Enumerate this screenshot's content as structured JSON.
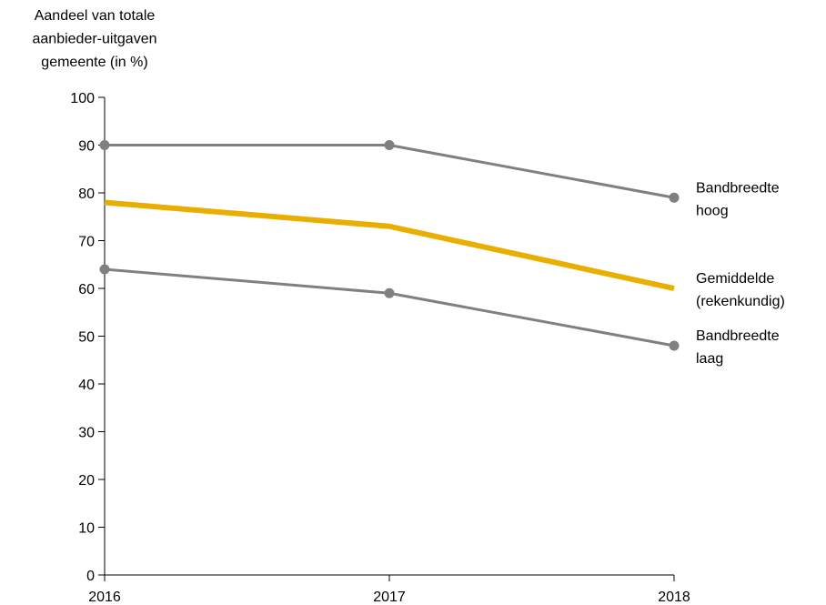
{
  "chart_data": {
    "type": "line",
    "ylabel_lines": [
      "Aandeel van totale",
      "aanbieder-uitgaven",
      "gemeente (in %)"
    ],
    "xlabel": "",
    "x": [
      "2016",
      "2017",
      "2018"
    ],
    "ylim": [
      0,
      100
    ],
    "yticks": [
      "0",
      "10",
      "20",
      "30",
      "40",
      "50",
      "60",
      "70",
      "80",
      "90",
      "100"
    ],
    "grid": false,
    "legend": "inline-right",
    "series": [
      {
        "name_lines": [
          "Bandbreedte",
          "hoog"
        ],
        "values": [
          90,
          90,
          79
        ],
        "color": "#808080",
        "markers": true
      },
      {
        "name_lines": [
          "Gemiddelde",
          "(rekenkundig)"
        ],
        "values": [
          78,
          73,
          60
        ],
        "color": "#E8AE00",
        "markers": false
      },
      {
        "name_lines": [
          "Bandbreedte",
          "laag"
        ],
        "values": [
          64,
          59,
          48
        ],
        "color": "#808080",
        "markers": true
      }
    ]
  }
}
